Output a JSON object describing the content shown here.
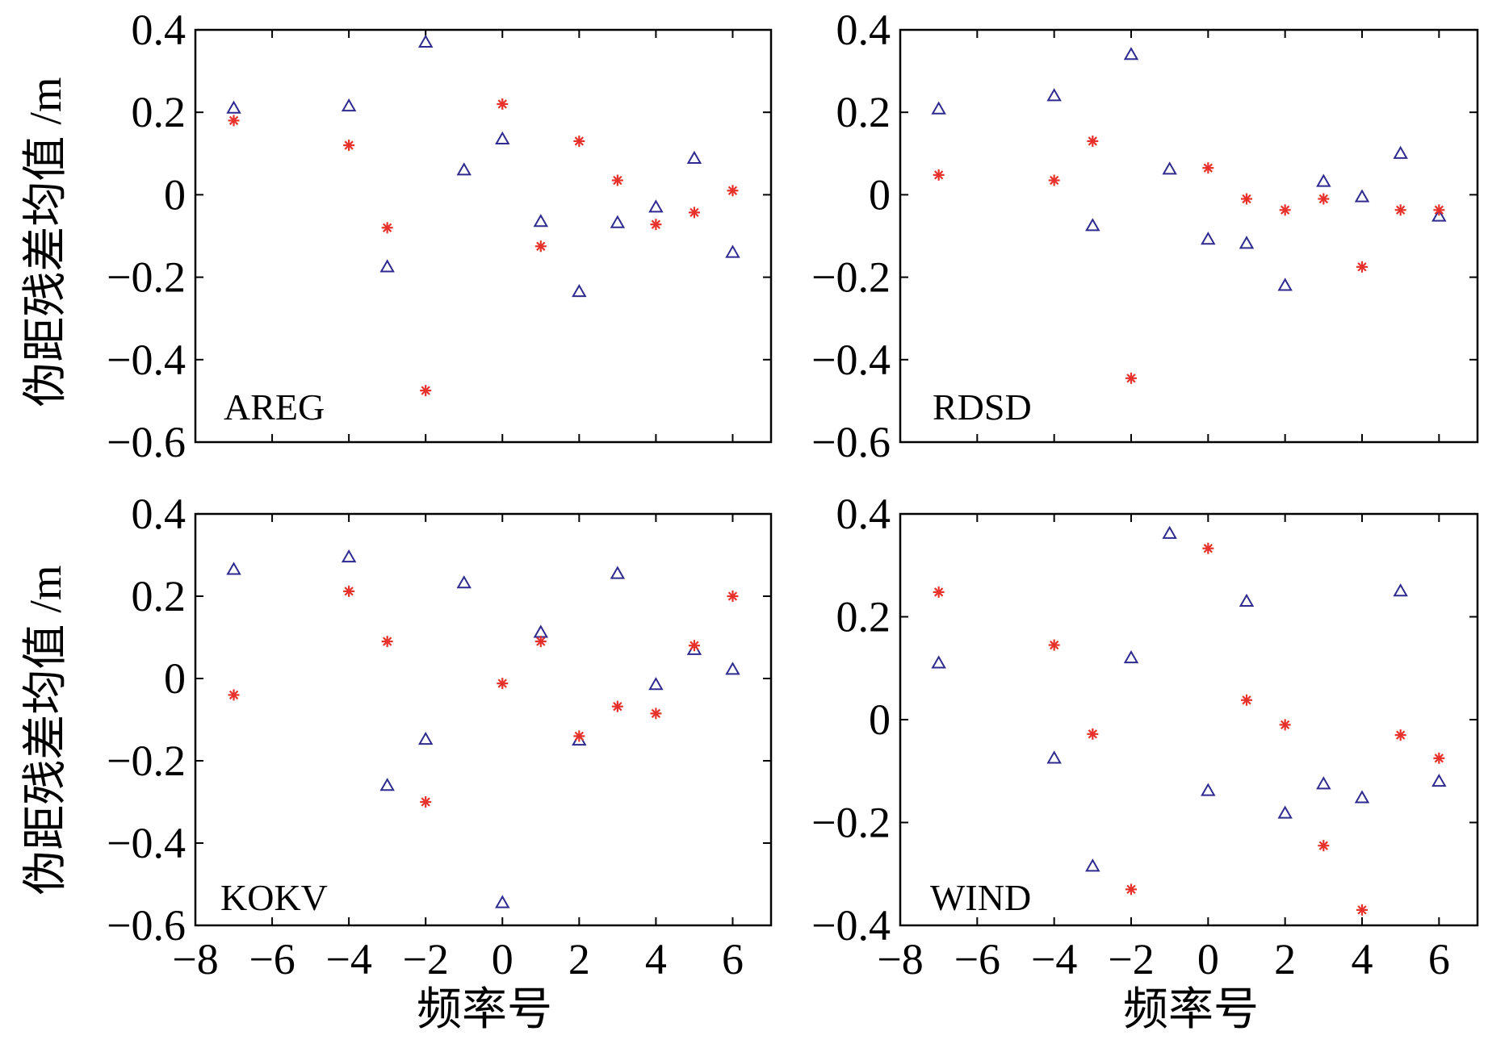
{
  "colors": {
    "series_triangle": "#2e2a8f",
    "series_star": "#e8312b"
  },
  "chart_data": [
    {
      "type": "scatter",
      "station": "AREG",
      "xlabel": "",
      "ylabel": "伪距残差均值 /m",
      "xlim": [
        -8,
        7
      ],
      "ylim": [
        -0.6,
        0.4
      ],
      "xticks": [
        -8,
        -6,
        -4,
        -2,
        0,
        2,
        4,
        6
      ],
      "yticks": [
        0.4,
        0.2,
        0,
        -0.2,
        -0.4,
        -0.6
      ],
      "ytick_labels": [
        "0.4",
        "0.2",
        "0",
        "−0.2",
        "−0.4",
        "−0.6"
      ],
      "series": [
        {
          "name": "triangle",
          "marker": "triangle",
          "x": [
            -7,
            -4,
            -3,
            -2,
            -1,
            0,
            1,
            2,
            3,
            4,
            5,
            6
          ],
          "y": [
            0.21,
            0.215,
            -0.175,
            0.37,
            0.06,
            0.135,
            -0.065,
            -0.235,
            -0.068,
            -0.03,
            0.088,
            -0.14
          ]
        },
        {
          "name": "star",
          "marker": "star",
          "x": [
            -7,
            -4,
            -3,
            -2,
            0,
            1,
            2,
            3,
            4,
            5,
            6
          ],
          "y": [
            0.18,
            0.12,
            -0.08,
            -0.475,
            0.22,
            -0.125,
            0.13,
            0.035,
            -0.072,
            -0.043,
            0.01
          ]
        }
      ]
    },
    {
      "type": "scatter",
      "station": "RDSD",
      "xlabel": "",
      "ylabel": "",
      "xlim": [
        -8,
        7
      ],
      "ylim": [
        -0.6,
        0.4
      ],
      "xticks": [
        -8,
        -6,
        -4,
        -2,
        0,
        2,
        4,
        6
      ],
      "yticks": [
        0.4,
        0.2,
        0,
        -0.2,
        -0.4,
        -0.6
      ],
      "ytick_labels": [
        "0.4",
        "0.2",
        "0",
        "−0.2",
        "−0.4",
        "−0.6"
      ],
      "series": [
        {
          "name": "triangle",
          "marker": "triangle",
          "x": [
            -7,
            -4,
            -3,
            -2,
            -1,
            0,
            1,
            2,
            3,
            4,
            5,
            6
          ],
          "y": [
            0.208,
            0.24,
            -0.075,
            0.34,
            0.062,
            -0.108,
            -0.118,
            -0.22,
            0.032,
            -0.005,
            0.1,
            -0.052
          ]
        },
        {
          "name": "star",
          "marker": "star",
          "x": [
            -7,
            -4,
            -3,
            -2,
            0,
            1,
            2,
            3,
            4,
            5,
            6
          ],
          "y": [
            0.048,
            0.035,
            0.13,
            -0.445,
            0.065,
            -0.01,
            -0.037,
            -0.01,
            -0.175,
            -0.037,
            -0.037
          ]
        }
      ]
    },
    {
      "type": "scatter",
      "station": "KOKV",
      "xlabel": "频率号",
      "ylabel": "伪距残差均值 /m",
      "xlim": [
        -8,
        7
      ],
      "ylim": [
        -0.6,
        0.4
      ],
      "xticks": [
        -8,
        -6,
        -4,
        -2,
        0,
        2,
        4,
        6
      ],
      "xtick_labels": [
        "−8",
        "−6",
        "−4",
        "−2",
        "0",
        "2",
        "4",
        "6"
      ],
      "yticks": [
        0.4,
        0.2,
        0,
        -0.2,
        -0.4,
        -0.6
      ],
      "ytick_labels": [
        "0.4",
        "0.2",
        "0",
        "−0.2",
        "−0.4",
        "−0.6"
      ],
      "series": [
        {
          "name": "triangle",
          "marker": "triangle",
          "x": [
            -7,
            -4,
            -3,
            -2,
            -1,
            0,
            1,
            2,
            3,
            4,
            5,
            6
          ],
          "y": [
            0.265,
            0.295,
            -0.26,
            -0.148,
            0.232,
            -0.545,
            0.112,
            -0.15,
            0.255,
            -0.015,
            0.07,
            0.022
          ]
        },
        {
          "name": "star",
          "marker": "star",
          "x": [
            -7,
            -4,
            -3,
            -2,
            0,
            1,
            2,
            3,
            4,
            5,
            6
          ],
          "y": [
            -0.04,
            0.212,
            0.09,
            -0.3,
            -0.012,
            0.09,
            -0.14,
            -0.068,
            -0.085,
            0.08,
            0.2
          ]
        }
      ]
    },
    {
      "type": "scatter",
      "station": "WIND",
      "xlabel": "频率号",
      "ylabel": "",
      "xlim": [
        -8,
        7
      ],
      "ylim": [
        -0.4,
        0.4
      ],
      "xticks": [
        -8,
        -6,
        -4,
        -2,
        0,
        2,
        4,
        6
      ],
      "xtick_labels": [
        "−8",
        "−6",
        "−4",
        "−2",
        "0",
        "2",
        "4",
        "6"
      ],
      "yticks": [
        0.4,
        0.2,
        0,
        -0.2,
        -0.4
      ],
      "ytick_labels": [
        "0.4",
        "0.2",
        "0",
        "−0.2",
        "−0.4"
      ],
      "series": [
        {
          "name": "triangle",
          "marker": "triangle",
          "x": [
            -7,
            -4,
            -3,
            -2,
            -1,
            0,
            1,
            2,
            3,
            4,
            5,
            6
          ],
          "y": [
            0.11,
            -0.075,
            -0.285,
            0.12,
            0.362,
            -0.138,
            0.23,
            -0.182,
            -0.125,
            -0.152,
            0.25,
            -0.12
          ]
        },
        {
          "name": "star",
          "marker": "star",
          "x": [
            -7,
            -4,
            -3,
            -2,
            0,
            1,
            2,
            3,
            4,
            5,
            6
          ],
          "y": [
            0.248,
            0.145,
            -0.028,
            -0.33,
            0.333,
            0.038,
            -0.01,
            -0.245,
            -0.37,
            -0.03,
            -0.075
          ]
        }
      ]
    }
  ]
}
